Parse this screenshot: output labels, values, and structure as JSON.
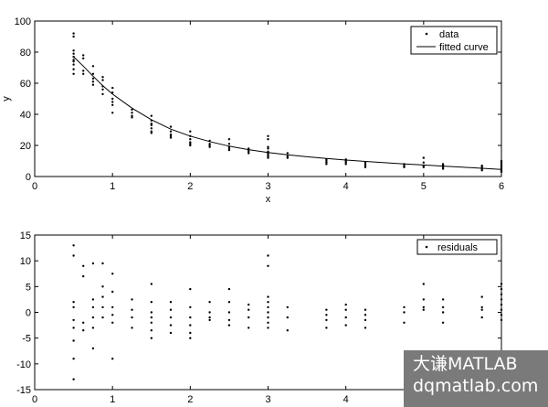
{
  "chart_data": [
    {
      "type": "scatter",
      "xlabel": "x",
      "ylabel": "y",
      "xlim": [
        0,
        6
      ],
      "ylim": [
        0,
        100
      ],
      "xticks": [
        0,
        1,
        2,
        3,
        4,
        5,
        6
      ],
      "yticks": [
        0,
        20,
        40,
        60,
        80,
        100
      ],
      "grid": false,
      "legend": "top-right",
      "series": [
        {
          "name": "data",
          "mark": "dot",
          "points": [
            [
              0.5,
              92
            ],
            [
              0.5,
              90
            ],
            [
              0.5,
              81
            ],
            [
              0.5,
              79
            ],
            [
              0.5,
              77
            ],
            [
              0.5,
              75
            ],
            [
              0.5,
              74
            ],
            [
              0.5,
              72
            ],
            [
              0.5,
              69
            ],
            [
              0.5,
              66
            ],
            [
              0.625,
              78
            ],
            [
              0.625,
              76
            ],
            [
              0.625,
              68
            ],
            [
              0.625,
              66
            ],
            [
              0.75,
              71
            ],
            [
              0.75,
              66
            ],
            [
              0.75,
              63
            ],
            [
              0.75,
              61
            ],
            [
              0.75,
              59
            ],
            [
              0.875,
              64
            ],
            [
              0.875,
              62
            ],
            [
              0.875,
              58
            ],
            [
              0.875,
              56
            ],
            [
              0.875,
              53
            ],
            [
              1.0,
              57
            ],
            [
              1.0,
              54
            ],
            [
              1.0,
              50
            ],
            [
              1.0,
              48
            ],
            [
              1.0,
              46
            ],
            [
              1.0,
              41
            ],
            [
              1.25,
              43
            ],
            [
              1.25,
              41
            ],
            [
              1.25,
              39
            ],
            [
              1.25,
              38
            ],
            [
              1.5,
              39
            ],
            [
              1.5,
              36
            ],
            [
              1.5,
              34
            ],
            [
              1.5,
              33
            ],
            [
              1.5,
              31
            ],
            [
              1.5,
              29
            ],
            [
              1.5,
              28
            ],
            [
              1.75,
              32
            ],
            [
              1.75,
              29
            ],
            [
              1.75,
              27
            ],
            [
              1.75,
              26
            ],
            [
              1.75,
              25
            ],
            [
              2.0,
              29
            ],
            [
              2.0,
              26
            ],
            [
              2.0,
              24
            ],
            [
              2.0,
              22
            ],
            [
              2.0,
              21
            ],
            [
              2.0,
              20
            ],
            [
              2.25,
              23
            ],
            [
              2.25,
              21
            ],
            [
              2.25,
              20
            ],
            [
              2.25,
              19
            ],
            [
              2.5,
              24
            ],
            [
              2.5,
              21
            ],
            [
              2.5,
              19
            ],
            [
              2.5,
              18
            ],
            [
              2.5,
              17
            ],
            [
              2.75,
              18
            ],
            [
              2.75,
              17
            ],
            [
              2.75,
              16
            ],
            [
              2.75,
              15
            ],
            [
              3.0,
              26
            ],
            [
              3.0,
              24
            ],
            [
              3.0,
              19
            ],
            [
              3.0,
              18
            ],
            [
              3.0,
              16
            ],
            [
              3.0,
              15
            ],
            [
              3.0,
              14
            ],
            [
              3.0,
              13
            ],
            [
              3.0,
              12
            ],
            [
              3.25,
              15
            ],
            [
              3.25,
              13
            ],
            [
              3.25,
              12
            ],
            [
              3.75,
              11
            ],
            [
              3.75,
              10
            ],
            [
              3.75,
              9
            ],
            [
              3.75,
              8
            ],
            [
              4.0,
              11
            ],
            [
              4.0,
              10
            ],
            [
              4.0,
              9
            ],
            [
              4.0,
              8
            ],
            [
              4.25,
              9
            ],
            [
              4.25,
              8
            ],
            [
              4.25,
              7
            ],
            [
              4.25,
              6
            ],
            [
              4.75,
              8
            ],
            [
              4.75,
              7
            ],
            [
              4.75,
              6
            ],
            [
              5.0,
              12
            ],
            [
              5.0,
              9
            ],
            [
              5.0,
              7
            ],
            [
              5.0,
              6
            ],
            [
              5.25,
              8
            ],
            [
              5.25,
              7
            ],
            [
              5.25,
              6
            ],
            [
              5.25,
              5
            ],
            [
              5.75,
              7
            ],
            [
              5.75,
              6
            ],
            [
              5.75,
              5
            ],
            [
              5.75,
              4
            ],
            [
              6.0,
              10
            ],
            [
              6.0,
              9
            ],
            [
              6.0,
              8
            ],
            [
              6.0,
              7
            ],
            [
              6.0,
              6
            ],
            [
              6.0,
              5
            ],
            [
              6.0,
              4
            ],
            [
              6.0,
              3
            ]
          ]
        },
        {
          "name": "fitted curve",
          "mark": "line",
          "points": [
            [
              0.5,
              77
            ],
            [
              0.625,
              71
            ],
            [
              0.75,
              64.5
            ],
            [
              0.875,
              58.5
            ],
            [
              1.0,
              53
            ],
            [
              1.25,
              44
            ],
            [
              1.5,
              36.5
            ],
            [
              1.75,
              30.5
            ],
            [
              2.0,
              26
            ],
            [
              2.25,
              22.5
            ],
            [
              2.5,
              19.5
            ],
            [
              2.75,
              17.3
            ],
            [
              3.0,
              15.5
            ],
            [
              3.25,
              14
            ],
            [
              3.5,
              12.7
            ],
            [
              3.75,
              11.6
            ],
            [
              4.0,
              10.6
            ],
            [
              4.25,
              9.7
            ],
            [
              4.5,
              8.9
            ],
            [
              4.75,
              8.1
            ],
            [
              5.0,
              7.4
            ],
            [
              5.25,
              6.7
            ],
            [
              5.5,
              6.0
            ],
            [
              5.75,
              5.3
            ],
            [
              6.0,
              4.5
            ]
          ]
        }
      ]
    },
    {
      "type": "scatter",
      "xlabel": "",
      "ylabel": "",
      "xlim": [
        0,
        6
      ],
      "ylim": [
        -15,
        15
      ],
      "xticks": [
        0,
        1,
        2,
        3,
        4,
        5,
        6
      ],
      "yticks": [
        -15,
        -10,
        -5,
        0,
        5,
        10,
        15
      ],
      "grid": false,
      "legend": "top-right",
      "series": [
        {
          "name": "residuals",
          "mark": "dot",
          "points": [
            [
              0.5,
              13
            ],
            [
              0.5,
              11
            ],
            [
              0.5,
              2
            ],
            [
              0.5,
              1
            ],
            [
              0.5,
              -1.5
            ],
            [
              0.5,
              -3
            ],
            [
              0.5,
              -5.5
            ],
            [
              0.5,
              -9
            ],
            [
              0.5,
              -13
            ],
            [
              0.625,
              9
            ],
            [
              0.625,
              7
            ],
            [
              0.625,
              -2
            ],
            [
              0.625,
              -3.5
            ],
            [
              0.75,
              9.5
            ],
            [
              0.75,
              2.5
            ],
            [
              0.75,
              1
            ],
            [
              0.75,
              -1
            ],
            [
              0.75,
              -3
            ],
            [
              0.75,
              -7
            ],
            [
              0.875,
              9.5
            ],
            [
              0.875,
              5
            ],
            [
              0.875,
              3
            ],
            [
              0.875,
              1
            ],
            [
              0.875,
              -1
            ],
            [
              1.0,
              7.5
            ],
            [
              1.0,
              4
            ],
            [
              1.0,
              1
            ],
            [
              1.0,
              -0.5
            ],
            [
              1.0,
              -2
            ],
            [
              1.0,
              -9
            ],
            [
              1.25,
              2.5
            ],
            [
              1.25,
              0.5
            ],
            [
              1.25,
              -1
            ],
            [
              1.25,
              -3
            ],
            [
              1.5,
              5.5
            ],
            [
              1.5,
              2
            ],
            [
              1.5,
              0
            ],
            [
              1.5,
              -1
            ],
            [
              1.5,
              -2
            ],
            [
              1.5,
              -3.5
            ],
            [
              1.5,
              -5
            ],
            [
              1.75,
              2
            ],
            [
              1.75,
              0.5
            ],
            [
              1.75,
              -1
            ],
            [
              1.75,
              -2.5
            ],
            [
              1.75,
              -4
            ],
            [
              2.0,
              4.5
            ],
            [
              2.0,
              1
            ],
            [
              2.0,
              -1
            ],
            [
              2.0,
              -2.5
            ],
            [
              2.0,
              -4
            ],
            [
              2.0,
              -5
            ],
            [
              2.25,
              2
            ],
            [
              2.25,
              0
            ],
            [
              2.25,
              -1
            ],
            [
              2.25,
              -1.5
            ],
            [
              2.5,
              4.5
            ],
            [
              2.5,
              2
            ],
            [
              2.5,
              0
            ],
            [
              2.5,
              -1.5
            ],
            [
              2.5,
              -2.5
            ],
            [
              2.75,
              1.5
            ],
            [
              2.75,
              0.5
            ],
            [
              2.75,
              -1
            ],
            [
              2.75,
              -3
            ],
            [
              3.0,
              11
            ],
            [
              3.0,
              9
            ],
            [
              3.0,
              3
            ],
            [
              3.0,
              2
            ],
            [
              3.0,
              1
            ],
            [
              3.0,
              0
            ],
            [
              3.0,
              -1
            ],
            [
              3.0,
              -2
            ],
            [
              3.0,
              -3
            ],
            [
              3.25,
              1
            ],
            [
              3.25,
              -1
            ],
            [
              3.25,
              -3.5
            ],
            [
              3.75,
              0.5
            ],
            [
              3.75,
              -0.5
            ],
            [
              3.75,
              -1.5
            ],
            [
              3.75,
              -3
            ],
            [
              4.0,
              1.5
            ],
            [
              4.0,
              0.5
            ],
            [
              4.0,
              -1
            ],
            [
              4.0,
              -2.5
            ],
            [
              4.25,
              0.5
            ],
            [
              4.25,
              -0.5
            ],
            [
              4.25,
              -1.5
            ],
            [
              4.25,
              -3
            ],
            [
              4.75,
              1
            ],
            [
              4.75,
              0
            ],
            [
              4.75,
              -2
            ],
            [
              5.0,
              5.5
            ],
            [
              5.0,
              2.5
            ],
            [
              5.0,
              1
            ],
            [
              5.0,
              0.5
            ],
            [
              5.25,
              2.5
            ],
            [
              5.25,
              1
            ],
            [
              5.25,
              0
            ],
            [
              5.25,
              -2
            ],
            [
              5.75,
              3
            ],
            [
              5.75,
              1
            ],
            [
              5.75,
              0.5
            ],
            [
              5.75,
              -1
            ],
            [
              6.0,
              5.5
            ],
            [
              6.0,
              4.5
            ],
            [
              6.0,
              3.5
            ],
            [
              6.0,
              2.5
            ],
            [
              6.0,
              1.5
            ],
            [
              6.0,
              0.5
            ],
            [
              6.0,
              -0.5
            ],
            [
              6.0,
              -1.5
            ]
          ]
        }
      ]
    }
  ],
  "watermark": {
    "line1": "大谦MATLAB",
    "line2": "dqmatlab.com",
    "bg_color": "#7a7a7a"
  }
}
